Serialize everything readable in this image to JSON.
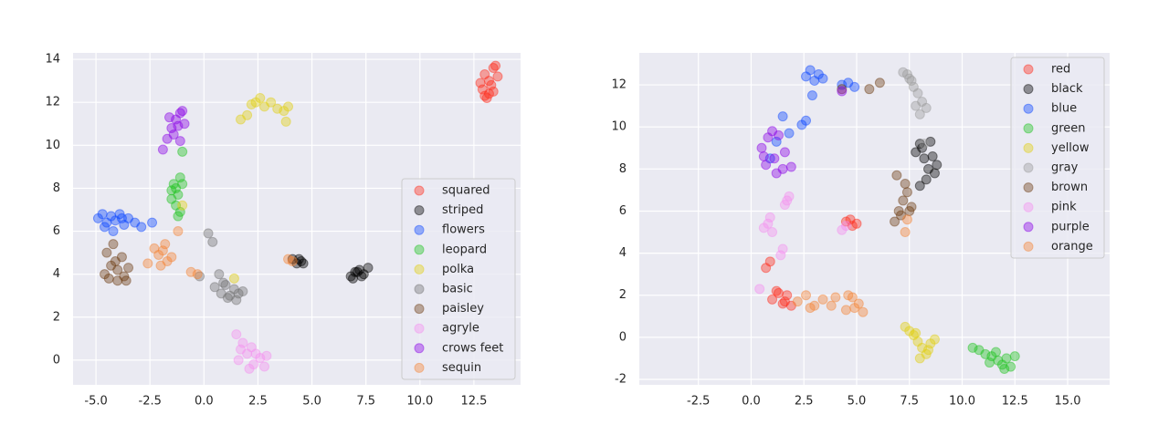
{
  "chart_data": [
    {
      "type": "scatter",
      "xlim": [
        -6.06,
        14.66
      ],
      "ylim": [
        -1.15,
        14.3
      ],
      "xticks": [
        {
          "value": -5,
          "label": "-5.0"
        },
        -2.5,
        {
          "value": 0,
          "label": "0.0"
        },
        2.5,
        {
          "value": 5,
          "label": "5.0"
        },
        7.5,
        {
          "value": 10,
          "label": "10.0"
        },
        12.5
      ],
      "yticks": [
        0,
        2,
        4,
        6,
        8,
        10,
        12,
        14
      ],
      "grid": true,
      "legend": "lower right",
      "series": [
        {
          "name": "squared",
          "color": "#ff2a1a",
          "x": [
            12.8,
            13.0,
            13.2,
            13.4,
            13.6,
            13.1,
            12.9,
            13.3,
            13.5,
            13.2,
            13.0,
            13.4
          ],
          "y": [
            12.9,
            13.3,
            12.4,
            13.6,
            13.2,
            12.2,
            12.6,
            12.8,
            13.7,
            13.0,
            12.3,
            12.5
          ]
        },
        {
          "name": "striped",
          "color": "#000000",
          "x": [
            4.1,
            4.3,
            4.5,
            4.6,
            4.4,
            6.8,
            7.0,
            7.2,
            7.4,
            7.6,
            7.3,
            7.1,
            6.9
          ],
          "y": [
            4.7,
            4.5,
            4.6,
            4.5,
            4.7,
            3.9,
            4.1,
            4.2,
            4.0,
            4.3,
            3.9,
            4.1,
            3.8
          ]
        },
        {
          "name": "flowers",
          "color": "#0a45ff",
          "x": [
            -4.9,
            -4.7,
            -4.5,
            -4.3,
            -4.1,
            -3.9,
            -3.7,
            -3.5,
            -3.2,
            -2.9,
            -4.6,
            -4.2,
            -3.8,
            -2.4
          ],
          "y": [
            6.6,
            6.8,
            6.4,
            6.7,
            6.5,
            6.8,
            6.3,
            6.6,
            6.4,
            6.2,
            6.2,
            6.0,
            6.6,
            6.4
          ]
        },
        {
          "name": "leopard",
          "color": "#1fc41f",
          "x": [
            -1.5,
            -1.3,
            -1.1,
            -1.4,
            -1.2,
            -1.0,
            -1.3,
            -1.1,
            -1.5,
            -1.2,
            -1.0
          ],
          "y": [
            7.5,
            8.0,
            8.5,
            8.2,
            7.7,
            8.2,
            7.2,
            6.9,
            7.9,
            6.7,
            9.7
          ]
        },
        {
          "name": "polka",
          "color": "#e0cf10",
          "x": [
            1.7,
            2.0,
            2.4,
            2.6,
            2.8,
            3.1,
            3.4,
            3.7,
            3.9,
            3.8,
            2.2,
            1.4,
            -1.0
          ],
          "y": [
            11.2,
            11.4,
            12.0,
            12.2,
            11.8,
            12.0,
            11.7,
            11.6,
            11.8,
            11.1,
            11.9,
            3.8,
            7.2
          ]
        },
        {
          "name": "basic",
          "color": "#707070",
          "x": [
            0.5,
            0.8,
            1.0,
            1.2,
            1.4,
            1.6,
            1.8,
            1.1,
            1.5,
            0.2,
            0.4,
            0.7,
            -0.2,
            0.9
          ],
          "y": [
            3.4,
            3.1,
            3.5,
            3.0,
            3.3,
            3.1,
            3.2,
            2.9,
            2.8,
            5.9,
            5.5,
            4.0,
            3.9,
            3.6
          ]
        },
        {
          "name": "paisley",
          "color": "#6b3a10",
          "x": [
            -4.6,
            -4.3,
            -4.0,
            -3.7,
            -3.5,
            -4.4,
            -4.1,
            -3.8,
            -4.5,
            -3.6,
            -4.2,
            -4.0
          ],
          "y": [
            4.0,
            4.4,
            4.2,
            3.9,
            4.3,
            3.8,
            4.6,
            4.8,
            5.0,
            3.7,
            5.4,
            3.7
          ]
        },
        {
          "name": "agryle",
          "color": "#f58ff0",
          "x": [
            1.5,
            1.8,
            2.0,
            2.3,
            2.6,
            2.9,
            2.1,
            1.7,
            2.4,
            2.8,
            1.6,
            2.2
          ],
          "y": [
            1.2,
            0.8,
            0.3,
            -0.2,
            0.1,
            0.2,
            -0.4,
            0.5,
            0.3,
            -0.3,
            0.0,
            0.6
          ]
        },
        {
          "name": "crows feet",
          "color": "#8a00e6",
          "x": [
            -1.7,
            -1.5,
            -1.3,
            -1.1,
            -0.9,
            -1.4,
            -1.2,
            -1.0,
            -1.6,
            -1.1,
            -1.9
          ],
          "y": [
            10.3,
            10.8,
            11.2,
            11.5,
            11.0,
            10.5,
            10.9,
            11.6,
            11.3,
            10.2,
            9.8
          ]
        },
        {
          "name": "sequin",
          "color": "#f58232",
          "x": [
            -2.3,
            -2.1,
            -1.9,
            -1.7,
            -1.5,
            -2.0,
            -1.8,
            -0.6,
            -0.3,
            3.9,
            4.1,
            -1.2,
            -2.6
          ],
          "y": [
            5.2,
            4.9,
            5.1,
            4.6,
            4.8,
            4.4,
            5.4,
            4.1,
            4.0,
            4.7,
            4.6,
            6.0,
            4.5
          ]
        }
      ]
    },
    {
      "type": "scatter",
      "xlim": [
        -5.3,
        16.99
      ],
      "ylim": [
        -2.26,
        13.52
      ],
      "xticks": [
        -2.5,
        {
          "value": 0,
          "label": "0.0"
        },
        2.5,
        {
          "value": 5,
          "label": "5.0"
        },
        7.5,
        {
          "value": 10,
          "label": "10.0"
        },
        12.5,
        {
          "value": 15,
          "label": "15.0"
        }
      ],
      "yticks": [
        -2,
        0,
        2,
        4,
        6,
        8,
        10,
        12
      ],
      "grid": true,
      "legend": "upper right",
      "series": [
        {
          "name": "red",
          "color": "#ff2a1a",
          "x": [
            1.0,
            1.3,
            1.5,
            1.7,
            1.9,
            1.2,
            1.6,
            0.7,
            0.9,
            4.5,
            4.8,
            5.0,
            4.7
          ],
          "y": [
            1.8,
            2.1,
            1.6,
            2.0,
            1.5,
            2.2,
            1.7,
            3.3,
            3.6,
            5.5,
            5.3,
            5.4,
            5.6
          ]
        },
        {
          "name": "black",
          "color": "#000000",
          "x": [
            7.8,
            8.0,
            8.2,
            8.4,
            8.6,
            8.8,
            8.3,
            8.1,
            8.5,
            8.0,
            8.7
          ],
          "y": [
            8.8,
            9.2,
            8.5,
            8.0,
            8.6,
            8.2,
            7.5,
            9.0,
            9.3,
            7.2,
            7.8
          ]
        },
        {
          "name": "blue",
          "color": "#0a45ff",
          "x": [
            2.6,
            2.8,
            3.0,
            3.2,
            3.4,
            2.9,
            4.3,
            4.6,
            4.9,
            2.4,
            2.6,
            1.8,
            1.2,
            0.9,
            1.5
          ],
          "y": [
            12.4,
            12.7,
            12.2,
            12.5,
            12.3,
            11.5,
            12.0,
            12.1,
            11.9,
            10.1,
            10.3,
            9.7,
            9.3,
            8.5,
            10.5
          ]
        },
        {
          "name": "green",
          "color": "#1fc41f",
          "x": [
            10.5,
            10.8,
            11.1,
            11.4,
            11.7,
            11.9,
            12.1,
            12.3,
            12.5,
            11.6,
            12.0,
            11.3
          ],
          "y": [
            -0.5,
            -0.6,
            -0.8,
            -0.9,
            -1.1,
            -1.3,
            -1.0,
            -1.4,
            -0.9,
            -0.7,
            -1.5,
            -1.2
          ]
        },
        {
          "name": "yellow",
          "color": "#e0cf10",
          "x": [
            7.3,
            7.5,
            7.7,
            7.9,
            8.1,
            8.3,
            8.5,
            8.7,
            8.0,
            7.8,
            8.4
          ],
          "y": [
            0.5,
            0.3,
            0.1,
            -0.2,
            -0.5,
            -0.8,
            -0.3,
            -0.1,
            -1.0,
            0.2,
            -0.6
          ]
        },
        {
          "name": "gray",
          "color": "#9a9a9a",
          "x": [
            7.2,
            7.5,
            7.7,
            7.9,
            8.1,
            8.3,
            7.6,
            8.0,
            7.8,
            8.2,
            7.4
          ],
          "y": [
            12.6,
            12.3,
            11.9,
            11.6,
            11.2,
            10.9,
            12.2,
            10.6,
            11.0,
            9.2,
            12.5
          ]
        },
        {
          "name": "brown",
          "color": "#6b3a10",
          "x": [
            6.8,
            7.0,
            7.2,
            7.4,
            7.6,
            7.1,
            7.3,
            7.5,
            6.9,
            5.6,
            6.1,
            4.3
          ],
          "y": [
            5.5,
            6.0,
            6.5,
            6.9,
            6.2,
            5.8,
            7.3,
            6.0,
            7.7,
            11.8,
            12.1,
            11.8
          ]
        },
        {
          "name": "pink",
          "color": "#f58ff0",
          "x": [
            0.6,
            0.8,
            1.0,
            0.9,
            1.6,
            1.8,
            1.7,
            1.5,
            1.4,
            4.3,
            4.5,
            0.4
          ],
          "y": [
            5.2,
            5.4,
            5.0,
            5.7,
            6.3,
            6.7,
            6.5,
            4.2,
            3.9,
            5.1,
            5.3,
            2.3
          ]
        },
        {
          "name": "purple",
          "color": "#8a00e6",
          "x": [
            0.5,
            0.6,
            0.8,
            1.0,
            1.3,
            1.6,
            1.9,
            1.2,
            0.7,
            1.5,
            1.1,
            4.3
          ],
          "y": [
            9.0,
            8.6,
            9.5,
            9.8,
            9.6,
            8.8,
            8.1,
            7.8,
            8.2,
            8.0,
            8.5,
            11.7
          ]
        },
        {
          "name": "orange",
          "color": "#f58232",
          "x": [
            2.2,
            2.6,
            3.0,
            3.4,
            4.0,
            4.5,
            4.8,
            5.1,
            5.3,
            4.9,
            4.6,
            7.3,
            7.4,
            2.8,
            3.8
          ],
          "y": [
            1.7,
            2.0,
            1.5,
            1.8,
            1.9,
            1.3,
            1.9,
            1.6,
            1.2,
            1.4,
            2.0,
            5.0,
            5.6,
            1.4,
            1.5
          ]
        }
      ]
    }
  ]
}
